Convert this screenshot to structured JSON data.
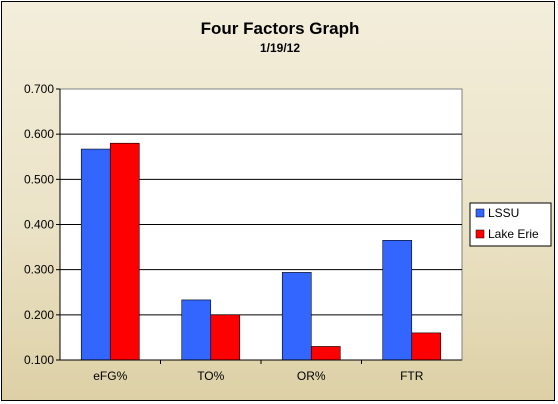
{
  "chart_data": {
    "type": "bar",
    "title": "Four Factors Graph",
    "subtitle": "1/19/12",
    "categories": [
      "eFG%",
      "TO%",
      "OR%",
      "FTR"
    ],
    "series": [
      {
        "name": "LSSU",
        "values": [
          0.567,
          0.233,
          0.294,
          0.365
        ],
        "color": "#3366ff"
      },
      {
        "name": "Lake Erie",
        "values": [
          0.58,
          0.2,
          0.13,
          0.16
        ],
        "color": "#ff0000"
      }
    ],
    "ylim": [
      0.1,
      0.7
    ],
    "yticks": [
      "0.100",
      "0.200",
      "0.300",
      "0.400",
      "0.500",
      "0.600",
      "0.700"
    ],
    "grid": true,
    "legend": "right"
  }
}
